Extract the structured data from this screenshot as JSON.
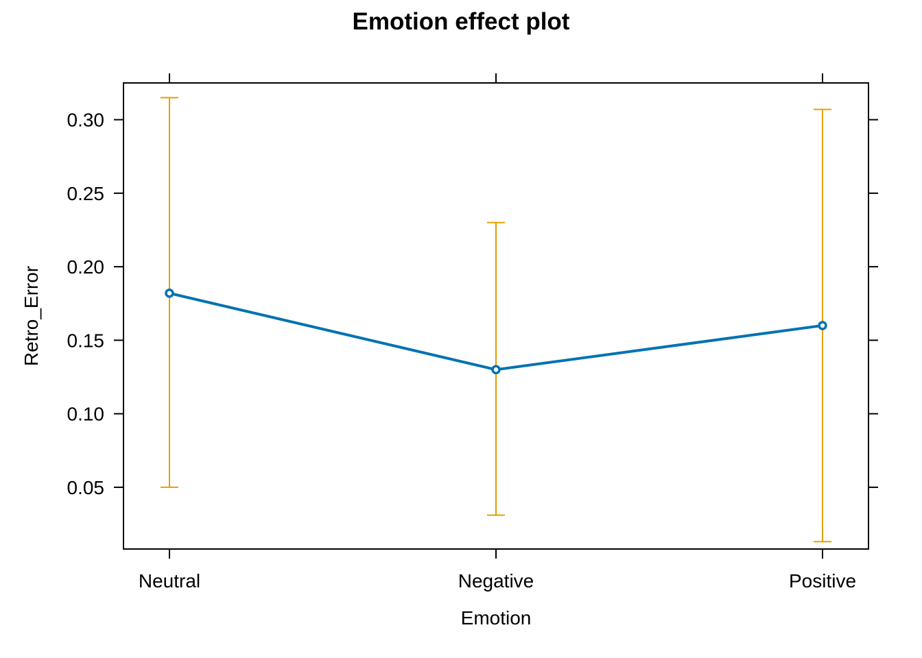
{
  "chart_data": {
    "type": "line",
    "title": "Emotion effect plot",
    "xlabel": "Emotion",
    "ylabel": "Retro_Error",
    "categories": [
      "Neutral",
      "Negative",
      "Positive"
    ],
    "values": [
      0.182,
      0.13,
      0.16
    ],
    "lower": [
      0.05,
      0.031,
      0.013
    ],
    "upper": [
      0.315,
      0.23,
      0.307
    ],
    "ylim": [
      0.008,
      0.325
    ],
    "yticks": [
      0.05,
      0.1,
      0.15,
      0.2,
      0.25,
      0.3
    ],
    "ytick_labels": [
      "0.05",
      "0.10",
      "0.15",
      "0.20",
      "0.25",
      "0.30"
    ],
    "grid": false,
    "line_color": "#0072B2",
    "errorbar_color": "#E69F00",
    "axis_color": "#000000"
  }
}
